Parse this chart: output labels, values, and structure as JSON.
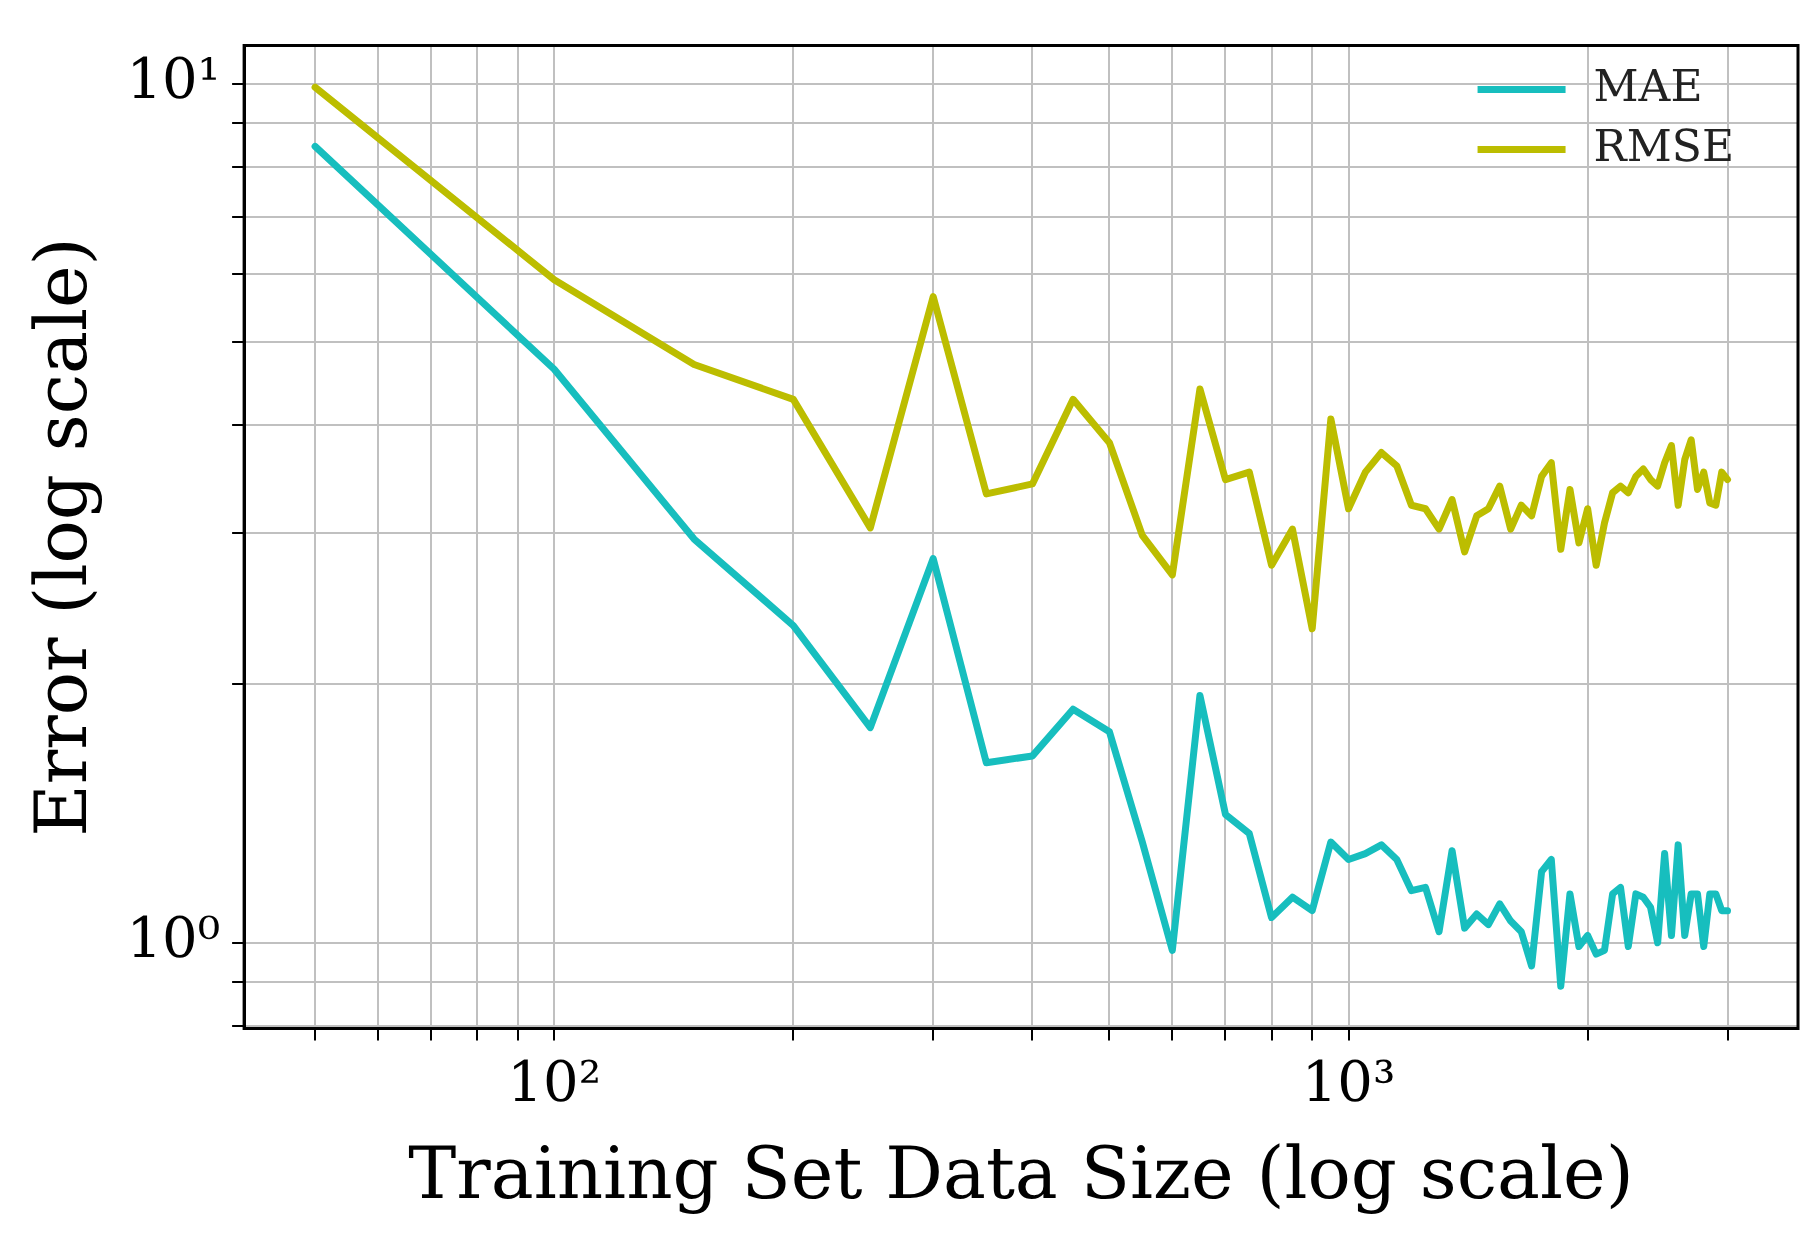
{
  "chart_data": {
    "type": "line",
    "xlabel": "Training Set Data Size (log scale)",
    "ylabel": "Error (log scale)",
    "x": [
      50,
      100,
      150,
      200,
      250,
      300,
      350,
      400,
      450,
      500,
      550,
      600,
      650,
      700,
      750,
      800,
      850,
      900,
      950,
      1000,
      1050,
      1100,
      1150,
      1200,
      1250,
      1300,
      1350,
      1400,
      1450,
      1500,
      1550,
      1600,
      1650,
      1700,
      1750,
      1800,
      1850,
      1900,
      1950,
      2000,
      2050,
      2100,
      2150,
      2200,
      2250,
      2300,
      2350,
      2400,
      2450,
      2500,
      2550,
      2600,
      2650,
      2700,
      2750,
      2800,
      2850,
      2900,
      2950,
      3000
    ],
    "series": [
      {
        "name": "MAE",
        "color": "#17bebe",
        "values": [
          8.45,
          4.65,
          2.95,
          2.34,
          1.78,
          2.8,
          1.62,
          1.65,
          1.87,
          1.76,
          1.31,
          0.98,
          1.94,
          1.41,
          1.34,
          1.07,
          1.13,
          1.09,
          1.31,
          1.25,
          1.27,
          1.3,
          1.25,
          1.15,
          1.16,
          1.03,
          1.28,
          1.04,
          1.08,
          1.05,
          1.11,
          1.06,
          1.03,
          0.94,
          1.21,
          1.25,
          0.89,
          1.14,
          0.99,
          1.02,
          0.97,
          0.98,
          1.14,
          1.16,
          0.99,
          1.14,
          1.13,
          1.1,
          1.0,
          1.27,
          1.02,
          1.3,
          1.02,
          1.14,
          1.14,
          0.99,
          1.14,
          1.14,
          1.09,
          1.09
        ]
      },
      {
        "name": "RMSE",
        "color": "#bcbd00",
        "values": [
          9.9,
          5.91,
          4.71,
          4.29,
          3.04,
          5.65,
          3.33,
          3.42,
          4.29,
          3.82,
          2.98,
          2.68,
          4.41,
          3.46,
          3.53,
          2.75,
          3.03,
          2.32,
          4.07,
          3.2,
          3.53,
          3.72,
          3.59,
          3.23,
          3.2,
          3.03,
          3.28,
          2.85,
          3.14,
          3.2,
          3.4,
          3.03,
          3.23,
          3.14,
          3.49,
          3.62,
          2.87,
          3.37,
          2.92,
          3.2,
          2.75,
          3.08,
          3.34,
          3.4,
          3.34,
          3.49,
          3.56,
          3.46,
          3.4,
          3.62,
          3.79,
          3.23,
          3.65,
          3.85,
          3.37,
          3.53,
          3.25,
          3.23,
          3.53,
          3.46
        ]
      }
    ],
    "log": "xy",
    "xlim": [
      40.7,
      3680
    ],
    "ylim": [
      0.795,
      11.07
    ],
    "xticks": [
      {
        "value": 50,
        "label": null
      },
      {
        "value": 60,
        "label": null
      },
      {
        "value": 70,
        "label": null
      },
      {
        "value": 80,
        "label": null
      },
      {
        "value": 90,
        "label": null
      },
      {
        "value": 100,
        "label": "10²"
      },
      {
        "value": 200,
        "label": null
      },
      {
        "value": 300,
        "label": null
      },
      {
        "value": 400,
        "label": null
      },
      {
        "value": 500,
        "label": null
      },
      {
        "value": 600,
        "label": null
      },
      {
        "value": 700,
        "label": null
      },
      {
        "value": 800,
        "label": null
      },
      {
        "value": 900,
        "label": null
      },
      {
        "value": 1000,
        "label": "10³"
      },
      {
        "value": 2000,
        "label": null
      },
      {
        "value": 3000,
        "label": null
      }
    ],
    "yticks": [
      {
        "value": 0.8,
        "label": null
      },
      {
        "value": 0.9,
        "label": null
      },
      {
        "value": 1,
        "label": "10⁰"
      },
      {
        "value": 2,
        "label": null
      },
      {
        "value": 3,
        "label": null
      },
      {
        "value": 4,
        "label": null
      },
      {
        "value": 5,
        "label": null
      },
      {
        "value": 6,
        "label": null
      },
      {
        "value": 7,
        "label": null
      },
      {
        "value": 8,
        "label": null
      },
      {
        "value": 9,
        "label": null
      },
      {
        "value": 10,
        "label": "10¹"
      }
    ],
    "grid": true,
    "legend": "top right",
    "marker": "none",
    "line_style": "solid"
  }
}
